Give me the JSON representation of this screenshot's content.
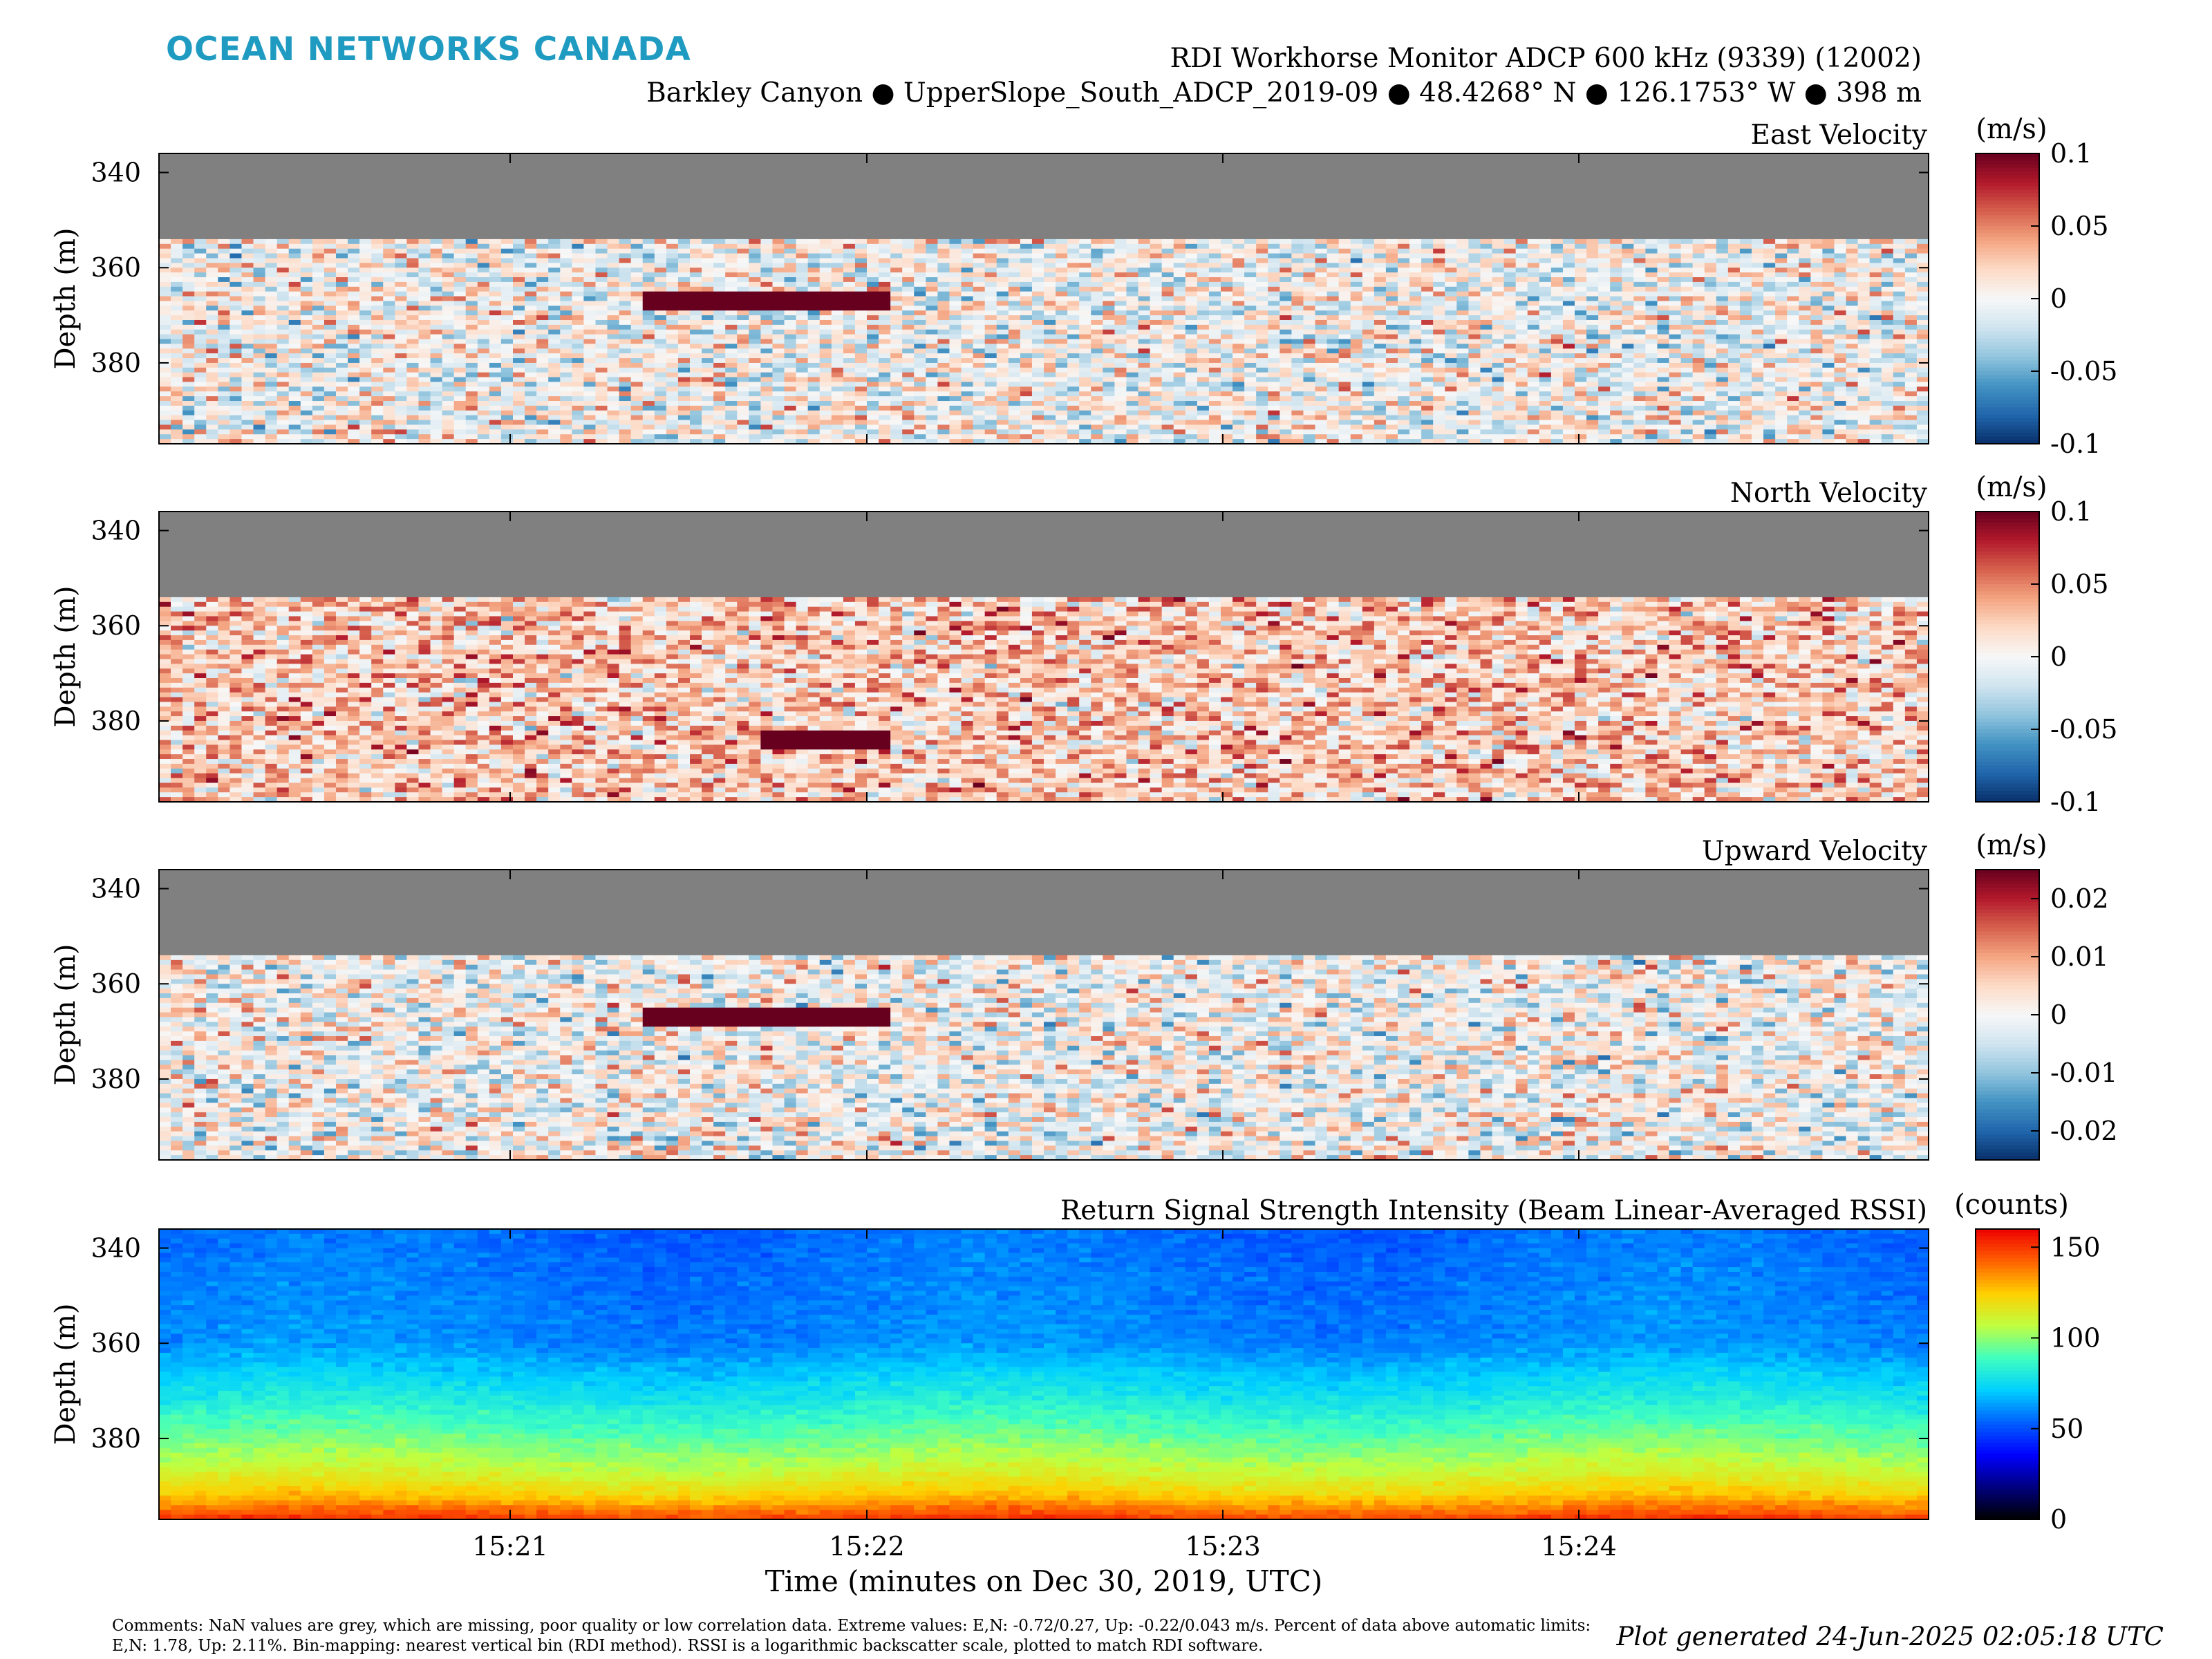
{
  "header": {
    "brand": "OCEAN NETWORKS CANADA",
    "title": "RDI Workhorse Monitor ADCP 600 kHz (9339) (12002)",
    "subtitle": "Barkley Canyon ● UpperSlope_South_ADCP_2019-09 ● 48.4268° N ● 126.1753° W ● 398 m"
  },
  "colors": {
    "nan_grey": "#808080",
    "brand_color": "#1f9bc2",
    "diverging": [
      "#08306b",
      "#2166ac",
      "#4393c3",
      "#92c5de",
      "#d1e5f0",
      "#f7f7f7",
      "#fddbc7",
      "#f4a582",
      "#d6604d",
      "#b2182b",
      "#67001f"
    ],
    "jet_rssi": [
      "#000000",
      "#00007f",
      "#0000ff",
      "#0060ff",
      "#00d0ff",
      "#40ffbf",
      "#c0ff40",
      "#ffd000",
      "#ff6000",
      "#ee0000"
    ]
  },
  "chart_data": [
    {
      "type": "heatmap",
      "title": "East Velocity",
      "ylabel": "Depth (m)",
      "colorbar_label": "(m/s)",
      "colorbar_ticks": [
        "0.1",
        "0.05",
        "0",
        "-0.05",
        "-0.1"
      ],
      "ylim": [
        397,
        336
      ],
      "yticks": [
        340,
        360,
        380
      ],
      "clim": [
        -0.1,
        0.1
      ],
      "colormap": "diverging",
      "nan_above_depth_m": 354,
      "x_ticks": [
        "15:21",
        "15:22",
        "15:23",
        "15:24"
      ],
      "features": [
        {
          "desc": "strong positive band",
          "t_start": "15:21:23",
          "t_end": "15:22:05",
          "depth_m": 367,
          "value": 0.1
        }
      ]
    },
    {
      "type": "heatmap",
      "title": "North Velocity",
      "ylabel": "Depth (m)",
      "colorbar_label": "(m/s)",
      "colorbar_ticks": [
        "0.1",
        "0.05",
        "0",
        "-0.05",
        "-0.1"
      ],
      "ylim": [
        397,
        336
      ],
      "yticks": [
        340,
        360,
        380
      ],
      "clim": [
        -0.1,
        0.1
      ],
      "colormap": "diverging",
      "nan_above_depth_m": 354,
      "x_ticks": [
        "15:21",
        "15:22",
        "15:23",
        "15:24"
      ],
      "features": [
        {
          "desc": "positive band",
          "t_start": "15:21:43",
          "t_end": "15:22:05",
          "depth_m": 384,
          "value": 0.1
        }
      ]
    },
    {
      "type": "heatmap",
      "title": "Upward Velocity",
      "ylabel": "Depth (m)",
      "colorbar_label": "(m/s)",
      "colorbar_ticks": [
        "0.02",
        "0.01",
        "0",
        "-0.01",
        "-0.02"
      ],
      "ylim": [
        397,
        336
      ],
      "yticks": [
        340,
        360,
        380
      ],
      "clim": [
        -0.025,
        0.025
      ],
      "colormap": "diverging",
      "nan_above_depth_m": 354,
      "x_ticks": [
        "15:21",
        "15:22",
        "15:23",
        "15:24"
      ],
      "features": [
        {
          "desc": "strong positive band",
          "t_start": "15:21:23",
          "t_end": "15:22:05",
          "depth_m": 367,
          "value": 0.025
        }
      ]
    },
    {
      "type": "heatmap",
      "title": "Return Signal Strength Intensity (Beam Linear-Averaged RSSI)",
      "ylabel": "Depth (m)",
      "xlabel": "Time (minutes on Dec 30, 2019, UTC)",
      "colorbar_label": "(counts)",
      "colorbar_ticks": [
        "150",
        "100",
        "50",
        "0"
      ],
      "ylim": [
        397,
        336
      ],
      "yticks": [
        340,
        360,
        380
      ],
      "clim": [
        0,
        160
      ],
      "colormap": "jet_rssi",
      "x_ticks": [
        "15:21",
        "15:22",
        "15:23",
        "15:24"
      ],
      "profile": {
        "depths_m": [
          336,
          360,
          372,
          380,
          387,
          392,
          395,
          397
        ],
        "counts": [
          55,
          60,
          80,
          95,
          110,
          125,
          140,
          150
        ]
      }
    }
  ],
  "footer": {
    "comments": "Comments: NaN values are grey, which are missing, poor quality or low correlation data. Extreme values: E,N: -0.72/0.27, Up: -0.22/0.043 m/s. Percent of data above automatic limits: E,N: 1.78, Up: 2.11%. Bin-mapping: nearest vertical bin (RDI method). RSSI is a logarithmic backscatter scale, plotted to match RDI software.",
    "generated": "Plot generated 24-Jun-2025 02:05:18 UTC"
  }
}
